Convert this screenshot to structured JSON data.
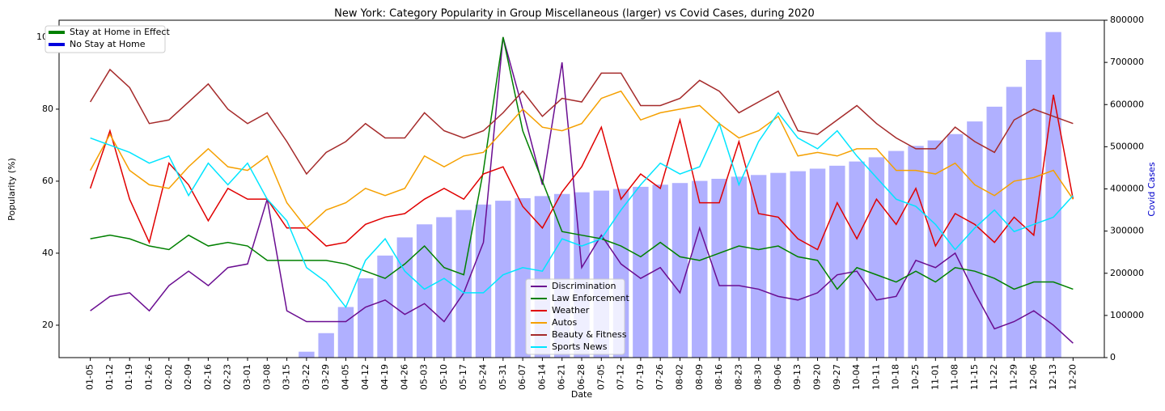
{
  "chart_data": {
    "type": "bar_line",
    "title": "New York: Category Popularity in Group Miscellaneous (larger) vs Covid Cases, during 2020",
    "x_label": "Date",
    "y_label": "Popularity (%)",
    "y2_label": "Covid Cases",
    "categories": [
      "01-05",
      "01-12",
      "01-19",
      "01-26",
      "02-02",
      "02-09",
      "02-16",
      "02-23",
      "03-01",
      "03-08",
      "03-15",
      "03-22",
      "03-29",
      "04-05",
      "04-12",
      "04-19",
      "04-26",
      "05-03",
      "05-10",
      "05-17",
      "05-24",
      "05-31",
      "06-07",
      "06-14",
      "06-21",
      "06-28",
      "07-05",
      "07-12",
      "07-19",
      "07-26",
      "08-02",
      "08-09",
      "08-16",
      "08-23",
      "08-30",
      "09-06",
      "09-13",
      "09-20",
      "09-27",
      "10-04",
      "10-11",
      "10-18",
      "10-25",
      "11-01",
      "11-08",
      "11-15",
      "11-22",
      "11-29",
      "12-06",
      "12-13",
      "12-20"
    ],
    "ylim": [
      11,
      104.7
    ],
    "yticks": [
      20,
      40,
      60,
      80,
      100
    ],
    "y2lim": [
      0,
      800000
    ],
    "y2ticks": [
      0,
      100000,
      200000,
      300000,
      400000,
      500000,
      600000,
      700000,
      800000
    ],
    "bars": {
      "color": "#b0b0ff",
      "axis": "y2",
      "values": [
        0,
        0,
        0,
        0,
        0,
        0,
        0,
        0,
        0,
        0,
        0,
        14000,
        58000,
        120000,
        188000,
        242000,
        285000,
        316000,
        333000,
        350000,
        363000,
        372000,
        378000,
        383000,
        388000,
        392000,
        396000,
        400000,
        405000,
        410000,
        414000,
        419000,
        424000,
        429000,
        433000,
        438000,
        442000,
        448000,
        455000,
        465000,
        475000,
        490000,
        502000,
        515000,
        530000,
        560000,
        595000,
        642000,
        706000,
        772000,
        null
      ]
    },
    "series": [
      {
        "name": "Discrimination",
        "color": "#6a0d91",
        "values": [
          24,
          28,
          29,
          24,
          31,
          35,
          31,
          36,
          37,
          55,
          24,
          21,
          21,
          21,
          25,
          27,
          23,
          26,
          21,
          29,
          43,
          100,
          80,
          59,
          93,
          36,
          45,
          37,
          33,
          36,
          29,
          47,
          31,
          31,
          30,
          28,
          27,
          29,
          34,
          35,
          27,
          28,
          38,
          36,
          40,
          29,
          19,
          21,
          24,
          20,
          15
        ]
      },
      {
        "name": "Law Enforcement",
        "color": "#008000",
        "values": [
          44,
          45,
          44,
          42,
          41,
          45,
          42,
          43,
          42,
          38,
          38,
          38,
          38,
          37,
          35,
          33,
          37,
          42,
          36,
          34,
          63,
          100,
          74,
          60,
          46,
          45,
          44,
          42,
          39,
          43,
          39,
          38,
          40,
          42,
          41,
          42,
          39,
          38,
          30,
          36,
          34,
          32,
          35,
          32,
          36,
          35,
          33,
          30,
          32,
          32,
          30
        ]
      },
      {
        "name": "Weather",
        "color": "#e00000",
        "values": [
          58,
          74,
          55,
          43,
          65,
          59,
          49,
          58,
          55,
          55,
          47,
          47,
          42,
          43,
          48,
          50,
          51,
          55,
          58,
          55,
          62,
          64,
          53,
          47,
          57,
          64,
          75,
          55,
          62,
          58,
          77,
          54,
          54,
          71,
          51,
          50,
          44,
          41,
          54,
          44,
          55,
          48,
          58,
          42,
          51,
          48,
          43,
          50,
          45,
          84,
          55
        ]
      },
      {
        "name": "Autos",
        "color": "#f5a000",
        "values": [
          63,
          73,
          63,
          59,
          58,
          64,
          69,
          64,
          63,
          67,
          54,
          47,
          52,
          54,
          58,
          56,
          58,
          67,
          64,
          67,
          68,
          74,
          80,
          75,
          74,
          76,
          83,
          85,
          77,
          79,
          80,
          81,
          76,
          72,
          74,
          78,
          67,
          68,
          67,
          69,
          69,
          63,
          63,
          62,
          65,
          59,
          56,
          60,
          61,
          63,
          55
        ]
      },
      {
        "name": "Beauty & Fitness",
        "color": "#a52a2a",
        "values": [
          82,
          91,
          86,
          76,
          77,
          82,
          87,
          80,
          76,
          79,
          71,
          62,
          68,
          71,
          76,
          72,
          72,
          79,
          74,
          72,
          74,
          79,
          85,
          78,
          83,
          82,
          90,
          90,
          81,
          81,
          83,
          88,
          85,
          79,
          82,
          85,
          74,
          73,
          77,
          81,
          76,
          72,
          69,
          69,
          75,
          71,
          68,
          77,
          80,
          78,
          76
        ]
      },
      {
        "name": "Sports News",
        "color": "#00e5ff",
        "values": [
          72,
          70,
          68,
          65,
          67,
          56,
          65,
          59,
          65,
          55,
          49,
          36,
          32,
          25,
          38,
          44,
          35,
          30,
          33,
          29,
          29,
          34,
          36,
          35,
          44,
          42,
          44,
          52,
          59,
          65,
          62,
          64,
          76,
          59,
          71,
          79,
          72,
          69,
          74,
          67,
          61,
          55,
          53,
          48,
          41,
          47,
          52,
          46,
          48,
          50,
          56
        ]
      }
    ],
    "legend2": [
      {
        "name": "Stay at Home in Effect",
        "color": "#008000"
      },
      {
        "name": "No Stay at Home",
        "color": "#0000dd"
      }
    ]
  }
}
